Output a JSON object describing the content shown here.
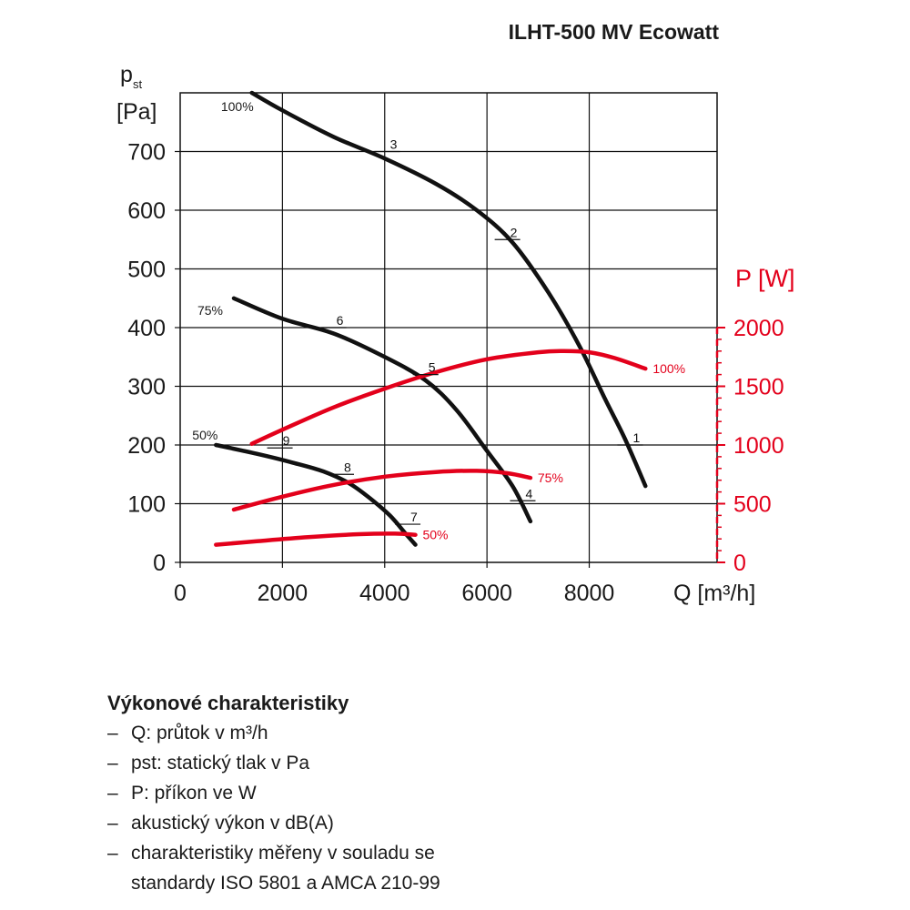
{
  "title": "ILHT-500 MV Ecowatt",
  "chart_data": {
    "type": "line",
    "x_axis": {
      "label": "Q [m³/h]",
      "range": [
        0,
        10500
      ],
      "ticks": [
        0,
        2000,
        4000,
        6000,
        8000
      ]
    },
    "y_axis_left": {
      "label_main": "p",
      "label_sub": "st",
      "unit": "[Pa]",
      "range": [
        0,
        800
      ],
      "ticks": [
        0,
        100,
        200,
        300,
        400,
        500,
        600,
        700
      ]
    },
    "y_axis_right": {
      "label": "P [W]",
      "range": [
        0,
        2000
      ],
      "ticks": [
        0,
        500,
        1000,
        1500,
        2000
      ],
      "color": "#e3001b"
    },
    "grid": true,
    "series": [
      {
        "axis": "left",
        "color": "#111111",
        "label": "100%",
        "points": [
          [
            1400,
            800
          ],
          [
            2000,
            770
          ],
          [
            3000,
            725
          ],
          [
            4000,
            688
          ],
          [
            5000,
            645
          ],
          [
            5800,
            600
          ],
          [
            6500,
            545
          ],
          [
            7200,
            460
          ],
          [
            7800,
            370
          ],
          [
            8300,
            280
          ],
          [
            8700,
            210
          ],
          [
            9100,
            130
          ]
        ]
      },
      {
        "axis": "left",
        "color": "#111111",
        "label": "75%",
        "points": [
          [
            1050,
            450
          ],
          [
            2000,
            415
          ],
          [
            3000,
            390
          ],
          [
            4000,
            350
          ],
          [
            4800,
            310
          ],
          [
            5400,
            260
          ],
          [
            6000,
            190
          ],
          [
            6500,
            130
          ],
          [
            6850,
            70
          ]
        ]
      },
      {
        "axis": "left",
        "color": "#111111",
        "label": "50%",
        "points": [
          [
            700,
            200
          ],
          [
            1500,
            185
          ],
          [
            2200,
            170
          ],
          [
            2800,
            155
          ],
          [
            3300,
            135
          ],
          [
            3700,
            110
          ],
          [
            4100,
            80
          ],
          [
            4400,
            50
          ],
          [
            4600,
            30
          ]
        ]
      },
      {
        "axis": "right",
        "color": "#e3001b",
        "label": "100%",
        "points": [
          [
            1400,
            1010
          ],
          [
            2000,
            1130
          ],
          [
            3000,
            1320
          ],
          [
            4000,
            1480
          ],
          [
            5000,
            1620
          ],
          [
            6000,
            1730
          ],
          [
            7000,
            1790
          ],
          [
            7500,
            1800
          ],
          [
            8000,
            1790
          ],
          [
            8500,
            1740
          ],
          [
            9100,
            1650
          ]
        ]
      },
      {
        "axis": "right",
        "color": "#e3001b",
        "label": "75%",
        "points": [
          [
            1050,
            450
          ],
          [
            2000,
            560
          ],
          [
            3000,
            660
          ],
          [
            4000,
            730
          ],
          [
            5000,
            770
          ],
          [
            5800,
            780
          ],
          [
            6400,
            760
          ],
          [
            6850,
            720
          ]
        ]
      },
      {
        "axis": "right",
        "color": "#e3001b",
        "label": "50%",
        "points": [
          [
            700,
            150
          ],
          [
            1500,
            180
          ],
          [
            2500,
            215
          ],
          [
            3500,
            240
          ],
          [
            4200,
            245
          ],
          [
            4600,
            235
          ]
        ]
      }
    ],
    "point_labels": [
      {
        "text": "1",
        "x": 8800,
        "y": 200,
        "axis": "left",
        "color": "#111111"
      },
      {
        "text": "2",
        "x": 6400,
        "y": 550,
        "axis": "left",
        "color": "#111111"
      },
      {
        "text": "3",
        "x": 4050,
        "y": 700,
        "axis": "left",
        "color": "#111111"
      },
      {
        "text": "4",
        "x": 6700,
        "y": 105,
        "axis": "left",
        "color": "#111111"
      },
      {
        "text": "5",
        "x": 4800,
        "y": 320,
        "axis": "left",
        "color": "#111111"
      },
      {
        "text": "6",
        "x": 3000,
        "y": 400,
        "axis": "left",
        "color": "#111111"
      },
      {
        "text": "7",
        "x": 4450,
        "y": 65,
        "axis": "left",
        "color": "#111111"
      },
      {
        "text": "8",
        "x": 3150,
        "y": 150,
        "axis": "left",
        "color": "#111111"
      },
      {
        "text": "9",
        "x": 1950,
        "y": 195,
        "axis": "left",
        "color": "#111111"
      }
    ]
  },
  "legend": {
    "heading": "Výkonové charakteristiky",
    "items": [
      {
        "dash": "–",
        "text": "Q: průtok v m³/h"
      },
      {
        "dash": "–",
        "text": "pst: statický tlak v Pa"
      },
      {
        "dash": "–",
        "text": "P: příkon ve W"
      },
      {
        "dash": "–",
        "text": "akustický výkon v dB(A)"
      },
      {
        "dash": "–",
        "text": "charakteristiky měřeny v souladu se"
      },
      {
        "dash": "",
        "text": "standardy ISO 5801 a AMCA 210-99"
      }
    ]
  }
}
